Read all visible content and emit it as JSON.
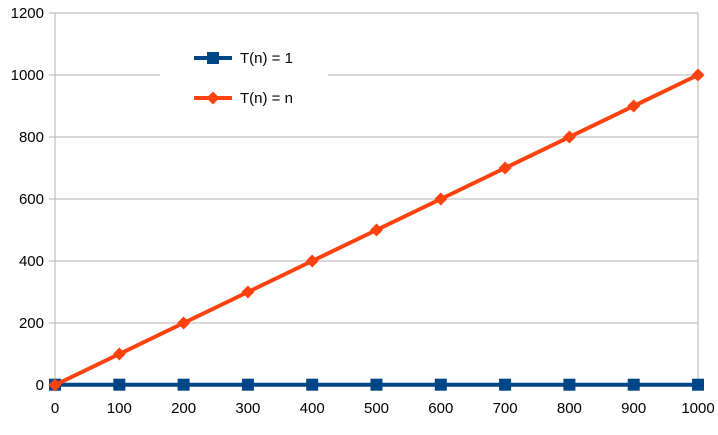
{
  "chart_data": {
    "type": "line",
    "title": "",
    "xlabel": "",
    "ylabel": "",
    "x": [
      0,
      100,
      200,
      300,
      400,
      500,
      600,
      700,
      800,
      900,
      1000
    ],
    "xlim": [
      0,
      1000
    ],
    "ylim": [
      0,
      1200
    ],
    "x_ticks": [
      "0",
      "100",
      "200",
      "300",
      "400",
      "500",
      "600",
      "700",
      "800",
      "900",
      "1000"
    ],
    "y_ticks": [
      "0",
      "200",
      "400",
      "600",
      "800",
      "1000",
      "1200"
    ],
    "y_tick_values": [
      0,
      200,
      400,
      600,
      800,
      1000,
      1200
    ],
    "grid": "horizontal",
    "legend_position": "top-left",
    "series": [
      {
        "name": "T(n) = 1",
        "values": [
          1,
          1,
          1,
          1,
          1,
          1,
          1,
          1,
          1,
          1,
          1
        ],
        "color": "#004586",
        "marker": "square"
      },
      {
        "name": "T(n) = n",
        "values": [
          0,
          100,
          200,
          300,
          400,
          500,
          600,
          700,
          800,
          900,
          1000
        ],
        "color": "#ff420e",
        "marker": "diamond"
      }
    ]
  }
}
